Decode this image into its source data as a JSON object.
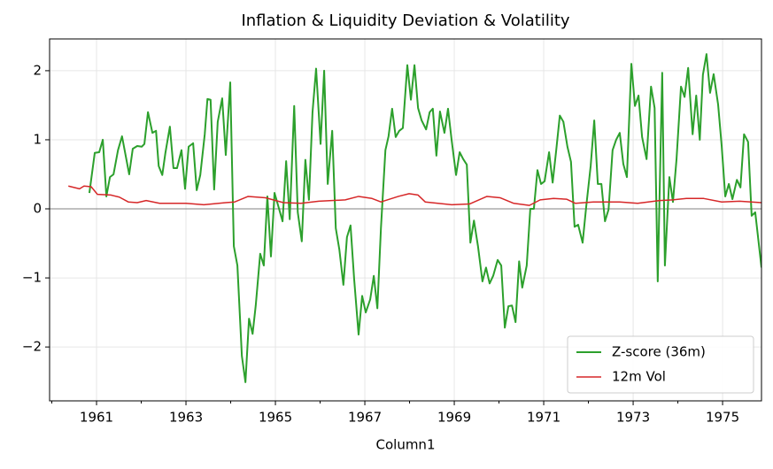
{
  "chart_data": {
    "type": "line",
    "title": "Inflation & Liquidity Deviation & Volatility",
    "xlabel": "Column1",
    "xlim": [
      1959.95,
      1975.87
    ],
    "ylim": [
      -2.78,
      2.46
    ],
    "xticks": [
      1961,
      1963,
      1965,
      1967,
      1969,
      1971,
      1973,
      1975
    ],
    "xminorticks": [
      1960,
      1962,
      1964,
      1966,
      1968,
      1970,
      1972,
      1974
    ],
    "yticks": [
      {
        "value": -2,
        "label": "−2"
      },
      {
        "value": -1,
        "label": "−1"
      },
      0,
      1,
      2
    ],
    "grid": true,
    "axhline": 0,
    "legend": "lower right",
    "series": [
      {
        "name": "Z-score (36m)",
        "color": "#2ca02c",
        "x": [
          1960.84,
          1960.96,
          1961.06,
          1961.14,
          1961.22,
          1961.3,
          1961.38,
          1961.48,
          1961.57,
          1961.73,
          1961.81,
          1961.91,
          1962.01,
          1962.07,
          1962.15,
          1962.25,
          1962.33,
          1962.39,
          1962.47,
          1962.54,
          1962.64,
          1962.72,
          1962.8,
          1962.9,
          1962.98,
          1963.06,
          1963.16,
          1963.24,
          1963.32,
          1963.42,
          1963.48,
          1963.55,
          1963.63,
          1963.71,
          1963.81,
          1963.89,
          1963.99,
          1964.07,
          1964.15,
          1964.25,
          1964.33,
          1964.41,
          1964.49,
          1964.56,
          1964.66,
          1964.74,
          1964.82,
          1964.9,
          1964.98,
          1965.06,
          1965.16,
          1965.24,
          1965.32,
          1965.42,
          1965.5,
          1965.59,
          1965.67,
          1965.75,
          1965.83,
          1965.91,
          1966.01,
          1966.09,
          1966.17,
          1966.27,
          1966.35,
          1966.43,
          1966.52,
          1966.6,
          1966.68,
          1966.76,
          1966.86,
          1966.94,
          1967.02,
          1967.12,
          1967.2,
          1967.28,
          1967.36,
          1967.46,
          1967.53,
          1967.61,
          1967.69,
          1967.77,
          1967.85,
          1967.95,
          1968.03,
          1968.11,
          1968.19,
          1968.27,
          1968.37,
          1968.45,
          1968.52,
          1968.6,
          1968.68,
          1968.78,
          1968.86,
          1968.94,
          1969.04,
          1969.12,
          1969.2,
          1969.28,
          1969.36,
          1969.44,
          1969.53,
          1969.63,
          1969.71,
          1969.79,
          1969.87,
          1969.97,
          1970.05,
          1970.13,
          1970.21,
          1970.29,
          1970.37,
          1970.45,
          1970.52,
          1970.62,
          1970.7,
          1970.78,
          1970.86,
          1970.94,
          1971.02,
          1971.12,
          1971.2,
          1971.28,
          1971.36,
          1971.44,
          1971.53,
          1971.61,
          1971.69,
          1971.77,
          1971.87,
          1971.95,
          1972.05,
          1972.13,
          1972.21,
          1972.29,
          1972.37,
          1972.45,
          1972.54,
          1972.62,
          1972.7,
          1972.78,
          1972.86,
          1972.96,
          1973.04,
          1973.12,
          1973.2,
          1973.3,
          1973.4,
          1973.48,
          1973.55,
          1973.65,
          1973.71,
          1973.81,
          1973.89,
          1973.97,
          1974.07,
          1974.15,
          1974.23,
          1974.33,
          1974.41,
          1974.49,
          1974.56,
          1974.64,
          1974.72,
          1974.8,
          1974.9,
          1974.98,
          1975.06,
          1975.14,
          1975.22,
          1975.32,
          1975.4,
          1975.48,
          1975.57,
          1975.65,
          1975.73,
          1975.87
        ],
        "values": [
          0.23,
          0.81,
          0.82,
          1.0,
          0.18,
          0.46,
          0.5,
          0.85,
          1.05,
          0.5,
          0.87,
          0.91,
          0.9,
          0.94,
          1.4,
          1.1,
          1.13,
          0.62,
          0.49,
          0.81,
          1.19,
          0.59,
          0.59,
          0.85,
          0.29,
          0.9,
          0.95,
          0.27,
          0.49,
          1.08,
          1.59,
          1.58,
          0.28,
          1.26,
          1.6,
          0.78,
          1.83,
          -0.54,
          -0.82,
          -2.13,
          -2.51,
          -1.59,
          -1.81,
          -1.4,
          -0.65,
          -0.82,
          0.18,
          -0.69,
          0.23,
          0.05,
          -0.18,
          0.69,
          -0.15,
          1.49,
          -0.05,
          -0.47,
          0.71,
          0.13,
          1.4,
          2.03,
          0.94,
          2.0,
          0.36,
          1.13,
          -0.28,
          -0.59,
          -1.1,
          -0.41,
          -0.24,
          -1.01,
          -1.82,
          -1.26,
          -1.5,
          -1.31,
          -0.97,
          -1.44,
          -0.28,
          0.85,
          1.05,
          1.45,
          1.04,
          1.13,
          1.17,
          2.08,
          1.58,
          2.08,
          1.46,
          1.28,
          1.15,
          1.4,
          1.45,
          0.77,
          1.41,
          1.1,
          1.45,
          1.0,
          0.49,
          0.82,
          0.72,
          0.64,
          -0.49,
          -0.17,
          -0.54,
          -1.05,
          -0.85,
          -1.08,
          -0.97,
          -0.74,
          -0.82,
          -1.72,
          -1.41,
          -1.4,
          -1.64,
          -0.76,
          -1.14,
          -0.82,
          0,
          0,
          0.56,
          0.36,
          0.4,
          0.82,
          0.38,
          0.85,
          1.35,
          1.26,
          0.9,
          0.68,
          -0.26,
          -0.23,
          -0.49,
          0.03,
          0.62,
          1.28,
          0.36,
          0.36,
          -0.18,
          -0.01,
          0.85,
          1.0,
          1.1,
          0.65,
          0.46,
          2.1,
          1.49,
          1.64,
          1.04,
          0.72,
          1.77,
          1.46,
          -1.05,
          1.97,
          -0.82,
          0.46,
          0.1,
          0.72,
          1.77,
          1.62,
          2.04,
          1.08,
          1.64,
          1.0,
          1.94,
          2.24,
          1.68,
          1.95,
          1.51,
          0.91,
          0.18,
          0.36,
          0.14,
          0.42,
          0.31,
          1.08,
          0.97,
          -0.1,
          -0.05,
          -0.85
        ]
      },
      {
        "name": "12m Vol",
        "color": "#d62728",
        "x": [
          1960.37,
          1960.62,
          1960.72,
          1960.88,
          1961.02,
          1961.32,
          1961.51,
          1961.71,
          1961.91,
          1962.11,
          1962.41,
          1963.0,
          1963.4,
          1963.89,
          1964.09,
          1964.39,
          1964.78,
          1965.18,
          1965.57,
          1965.97,
          1966.56,
          1966.86,
          1967.16,
          1967.36,
          1967.75,
          1967.99,
          1968.19,
          1968.35,
          1968.94,
          1969.34,
          1969.73,
          1970.03,
          1970.33,
          1970.68,
          1970.92,
          1971.22,
          1971.51,
          1971.71,
          1972.11,
          1972.7,
          1973.1,
          1973.59,
          1973.89,
          1974.19,
          1974.58,
          1974.98,
          1975.38,
          1975.87
        ],
        "values": [
          0.33,
          0.29,
          0.33,
          0.32,
          0.21,
          0.2,
          0.17,
          0.1,
          0.09,
          0.12,
          0.08,
          0.08,
          0.06,
          0.09,
          0.1,
          0.18,
          0.16,
          0.09,
          0.08,
          0.11,
          0.13,
          0.18,
          0.15,
          0.1,
          0.18,
          0.22,
          0.2,
          0.1,
          0.06,
          0.07,
          0.18,
          0.16,
          0.08,
          0.05,
          0.13,
          0.15,
          0.14,
          0.08,
          0.1,
          0.1,
          0.08,
          0.12,
          0.13,
          0.15,
          0.15,
          0.1,
          0.11,
          0.09
        ]
      }
    ]
  }
}
